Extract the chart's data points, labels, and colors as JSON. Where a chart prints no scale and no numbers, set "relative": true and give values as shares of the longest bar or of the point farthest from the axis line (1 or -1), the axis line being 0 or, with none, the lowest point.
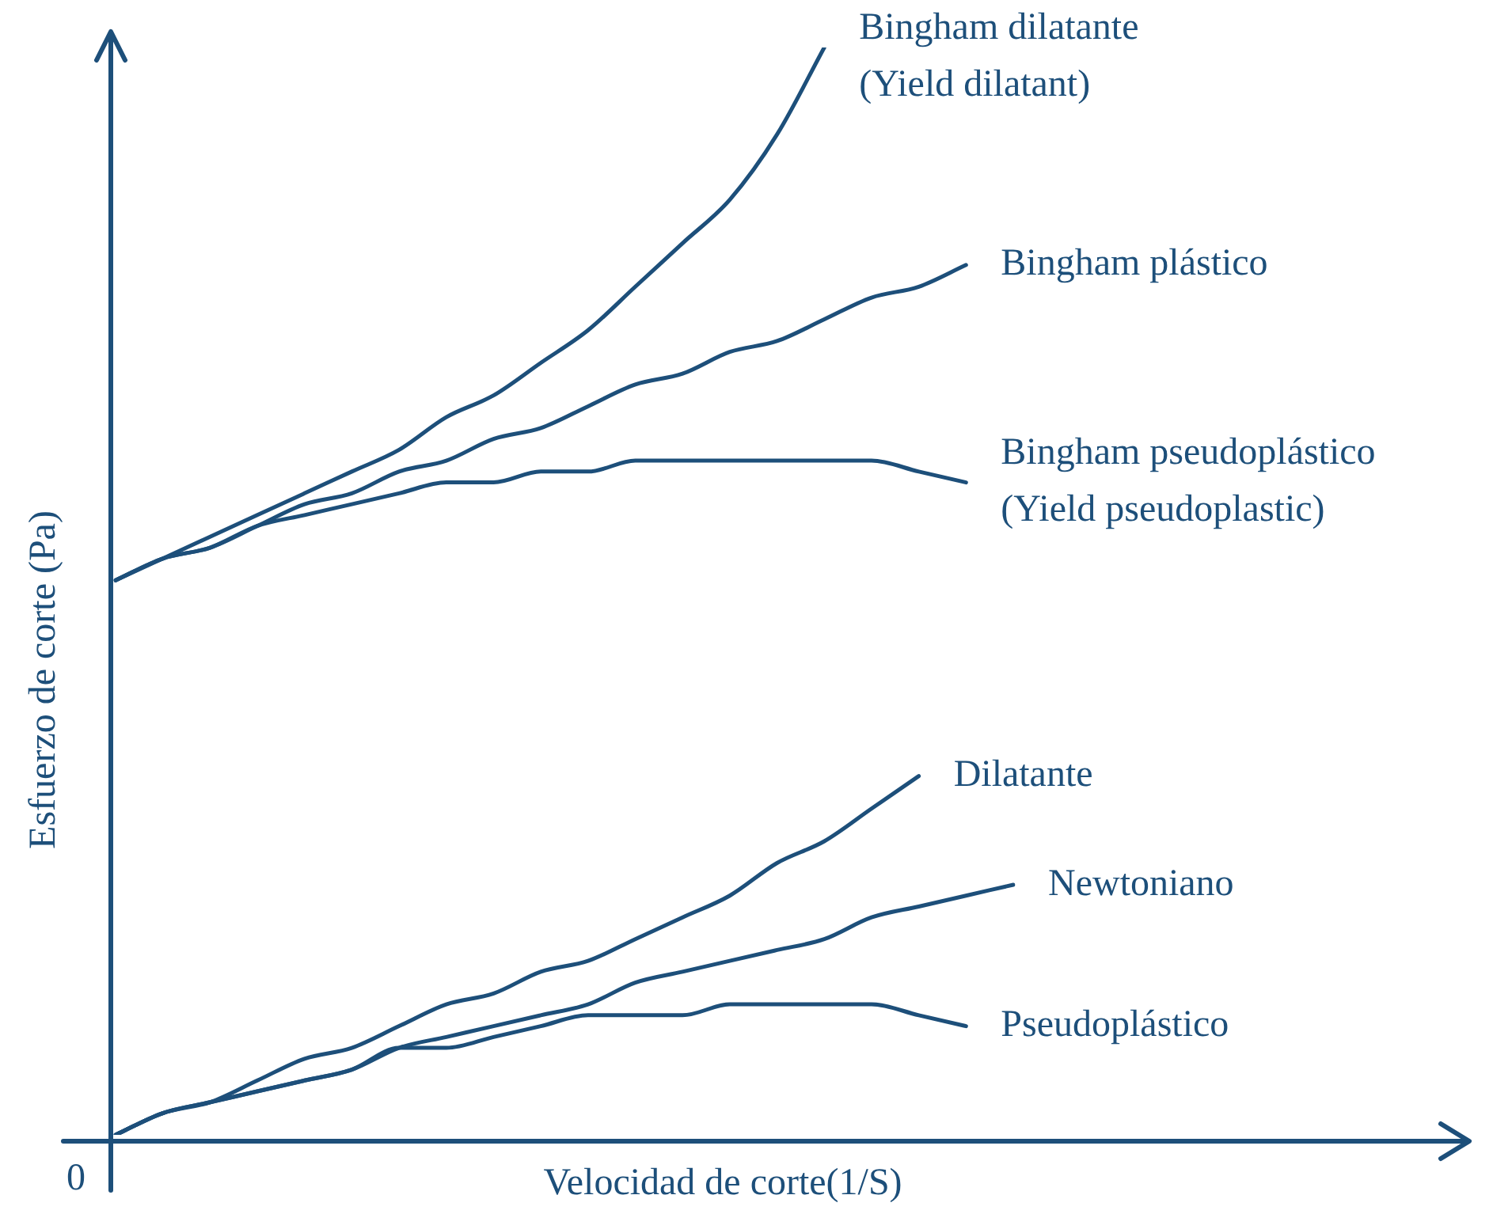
{
  "chart_data": {
    "type": "line",
    "relative": true,
    "xlabel": "Velocidad de corte(1/S)",
    "ylabel": "Esfuerzo de corte (Pa)",
    "annotations": [
      "0"
    ],
    "legend": false,
    "grid": false,
    "marker": "none",
    "line_style": "solid",
    "categories": [
      null,
      null,
      null,
      null,
      null,
      null,
      null,
      null,
      null,
      null,
      null,
      null,
      null,
      null,
      null,
      null,
      null,
      null,
      null,
      null
    ],
    "series": [
      {
        "name": "Bingham dilatante\n(Yield dilatant)",
        "color": "#1d4f7a",
        "values": [
          0.51,
          0.53,
          0.55,
          0.57,
          0.59,
          0.61,
          0.63,
          0.66,
          0.68,
          0.71,
          0.74,
          0.78,
          0.82,
          0.86,
          0.92,
          1,
          null,
          null,
          null,
          null
        ]
      },
      {
        "name": "Bingham plástico",
        "color": "#1d4f7a",
        "values": [
          0.51,
          0.53,
          0.54,
          0.56,
          0.58,
          0.59,
          0.61,
          0.62,
          0.64,
          0.65,
          0.67,
          0.69,
          0.7,
          0.72,
          0.73,
          0.75,
          0.77,
          0.78,
          0.8,
          null
        ]
      },
      {
        "name": "Bingham pseudoplástico\n(Yield pseudoplastic)",
        "color": "#1d4f7a",
        "values": [
          0.51,
          0.53,
          0.54,
          0.56,
          0.57,
          0.58,
          0.59,
          0.6,
          0.6,
          0.61,
          0.61,
          0.62,
          0.62,
          0.62,
          0.62,
          0.62,
          0.62,
          0.61,
          0.6,
          null
        ]
      },
      {
        "name": "Dilatante",
        "color": "#1d4f7a",
        "values": [
          0,
          0.02,
          0.03,
          0.05,
          0.07,
          0.08,
          0.1,
          0.12,
          0.13,
          0.15,
          0.16,
          0.18,
          0.2,
          0.22,
          0.25,
          0.27,
          0.3,
          0.33,
          null,
          null
        ]
      },
      {
        "name": "Newtoniano",
        "color": "#1d4f7a",
        "values": [
          0,
          0.02,
          0.03,
          0.04,
          0.05,
          0.06,
          0.08,
          0.09,
          0.1,
          0.11,
          0.12,
          0.14,
          0.15,
          0.16,
          0.17,
          0.18,
          0.2,
          0.21,
          0.22,
          0.23
        ]
      },
      {
        "name": "Pseudoplástico",
        "color": "#1d4f7a",
        "values": [
          0,
          0.02,
          0.03,
          0.04,
          0.05,
          0.06,
          0.08,
          0.08,
          0.09,
          0.1,
          0.11,
          0.11,
          0.11,
          0.12,
          0.12,
          0.12,
          0.12,
          0.11,
          0.1,
          null
        ]
      }
    ]
  }
}
